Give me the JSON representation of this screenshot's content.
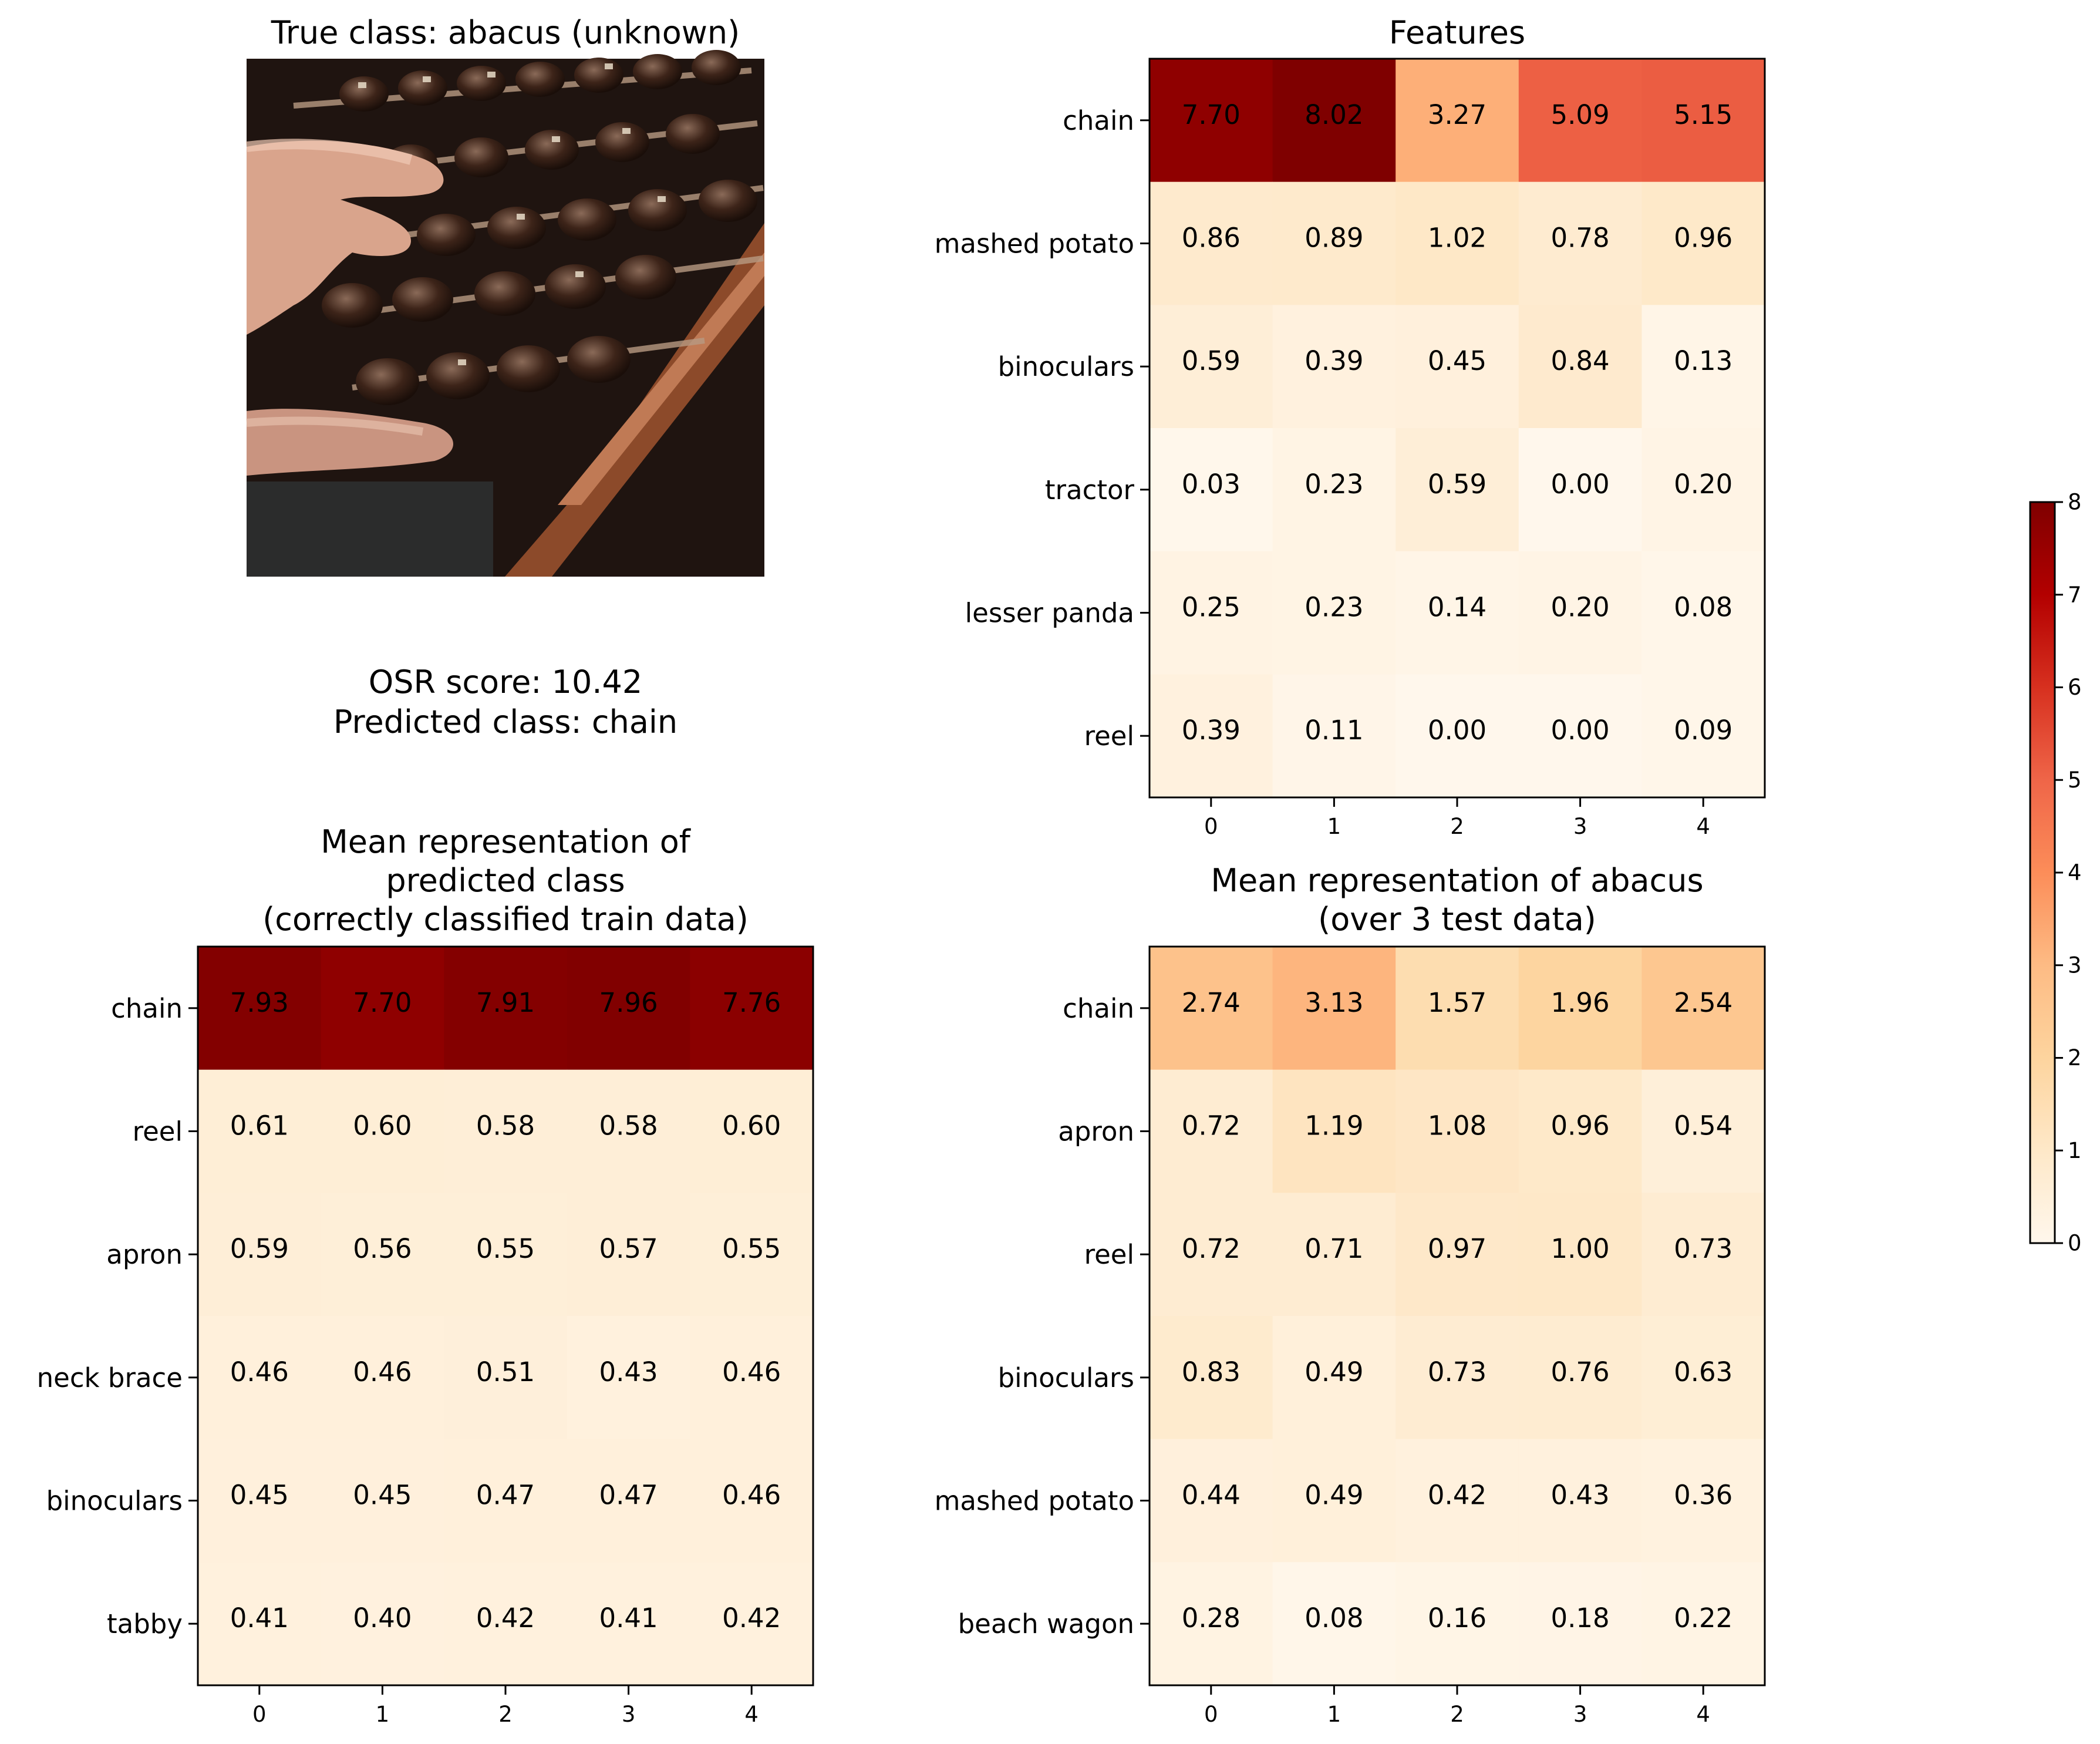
{
  "image_panel": {
    "title": "True class: abacus (unknown)",
    "image_icon": "abacus-photo"
  },
  "info": {
    "osr_line": "OSR score: 10.42",
    "pred_line": "Predicted class: chain"
  },
  "colors": {
    "cmap": "OrRd",
    "stops": [
      "#fff7ec",
      "#fee8c8",
      "#fdd49e",
      "#fdbb84",
      "#fc8d59",
      "#ef6548",
      "#d7301f",
      "#b30000",
      "#7f0000"
    ]
  },
  "chart_data": [
    {
      "id": "features",
      "type": "heatmap",
      "title_lines": [
        "Features"
      ],
      "rows": [
        "chain",
        "mashed potato",
        "binoculars",
        "tractor",
        "lesser panda",
        "reel"
      ],
      "cols": [
        "0",
        "1",
        "2",
        "3",
        "4"
      ],
      "values": [
        [
          7.7,
          8.02,
          3.27,
          5.09,
          5.15
        ],
        [
          0.86,
          0.89,
          1.02,
          0.78,
          0.96
        ],
        [
          0.59,
          0.39,
          0.45,
          0.84,
          0.13
        ],
        [
          0.03,
          0.23,
          0.59,
          0.0,
          0.2
        ],
        [
          0.25,
          0.23,
          0.14,
          0.2,
          0.08
        ],
        [
          0.39,
          0.11,
          0.0,
          0.0,
          0.09
        ]
      ],
      "labels": [
        [
          "7.70",
          "8.02",
          "3.27",
          "5.09",
          "5.15"
        ],
        [
          "0.86",
          "0.89",
          "1.02",
          "0.78",
          "0.96"
        ],
        [
          "0.59",
          "0.39",
          "0.45",
          "0.84",
          "0.13"
        ],
        [
          "0.03",
          "0.23",
          "0.59",
          "0.00",
          "0.20"
        ],
        [
          "0.25",
          "0.23",
          "0.14",
          "0.20",
          "0.08"
        ],
        [
          "0.39",
          "0.11",
          "0.00",
          "0.00",
          "0.09"
        ]
      ]
    },
    {
      "id": "mean-predicted",
      "type": "heatmap",
      "title_lines": [
        "Mean representation of",
        "predicted class",
        "(correctly classified train data)"
      ],
      "rows": [
        "chain",
        "reel",
        "apron",
        "neck brace",
        "binoculars",
        "tabby"
      ],
      "cols": [
        "0",
        "1",
        "2",
        "3",
        "4"
      ],
      "values": [
        [
          7.93,
          7.7,
          7.91,
          7.96,
          7.76
        ],
        [
          0.61,
          0.6,
          0.58,
          0.58,
          0.6
        ],
        [
          0.59,
          0.56,
          0.55,
          0.57,
          0.55
        ],
        [
          0.46,
          0.46,
          0.51,
          0.43,
          0.46
        ],
        [
          0.45,
          0.45,
          0.47,
          0.47,
          0.46
        ],
        [
          0.41,
          0.4,
          0.42,
          0.41,
          0.42
        ]
      ],
      "labels": [
        [
          "7.93",
          "7.70",
          "7.91",
          "7.96",
          "7.76"
        ],
        [
          "0.61",
          "0.60",
          "0.58",
          "0.58",
          "0.60"
        ],
        [
          "0.59",
          "0.56",
          "0.55",
          "0.57",
          "0.55"
        ],
        [
          "0.46",
          "0.46",
          "0.51",
          "0.43",
          "0.46"
        ],
        [
          "0.45",
          "0.45",
          "0.47",
          "0.47",
          "0.46"
        ],
        [
          "0.41",
          "0.40",
          "0.42",
          "0.41",
          "0.42"
        ]
      ]
    },
    {
      "id": "mean-abacus",
      "type": "heatmap",
      "title_lines": [
        "Mean representation of abacus",
        "(over 3 test data)"
      ],
      "rows": [
        "chain",
        "apron",
        "reel",
        "binoculars",
        "mashed potato",
        "beach wagon"
      ],
      "cols": [
        "0",
        "1",
        "2",
        "3",
        "4"
      ],
      "values": [
        [
          2.74,
          3.13,
          1.57,
          1.96,
          2.54
        ],
        [
          0.72,
          1.19,
          1.08,
          0.96,
          0.54
        ],
        [
          0.72,
          0.71,
          0.97,
          1.0,
          0.73
        ],
        [
          0.83,
          0.49,
          0.73,
          0.76,
          0.63
        ],
        [
          0.44,
          0.49,
          0.42,
          0.43,
          0.36
        ],
        [
          0.28,
          0.08,
          0.16,
          0.18,
          0.22
        ]
      ],
      "labels": [
        [
          "2.74",
          "3.13",
          "1.57",
          "1.96",
          "2.54"
        ],
        [
          "0.72",
          "1.19",
          "1.08",
          "0.96",
          "0.54"
        ],
        [
          "0.72",
          "0.71",
          "0.97",
          "1.00",
          "0.73"
        ],
        [
          "0.83",
          "0.49",
          "0.73",
          "0.76",
          "0.63"
        ],
        [
          "0.44",
          "0.49",
          "0.42",
          "0.43",
          "0.36"
        ],
        [
          "0.28",
          "0.08",
          "0.16",
          "0.18",
          "0.22"
        ]
      ]
    }
  ],
  "colorbar": {
    "vmin": 0,
    "vmax": 8,
    "ticks": [
      "0",
      "1",
      "2",
      "3",
      "4",
      "5",
      "6",
      "7",
      "8"
    ]
  }
}
